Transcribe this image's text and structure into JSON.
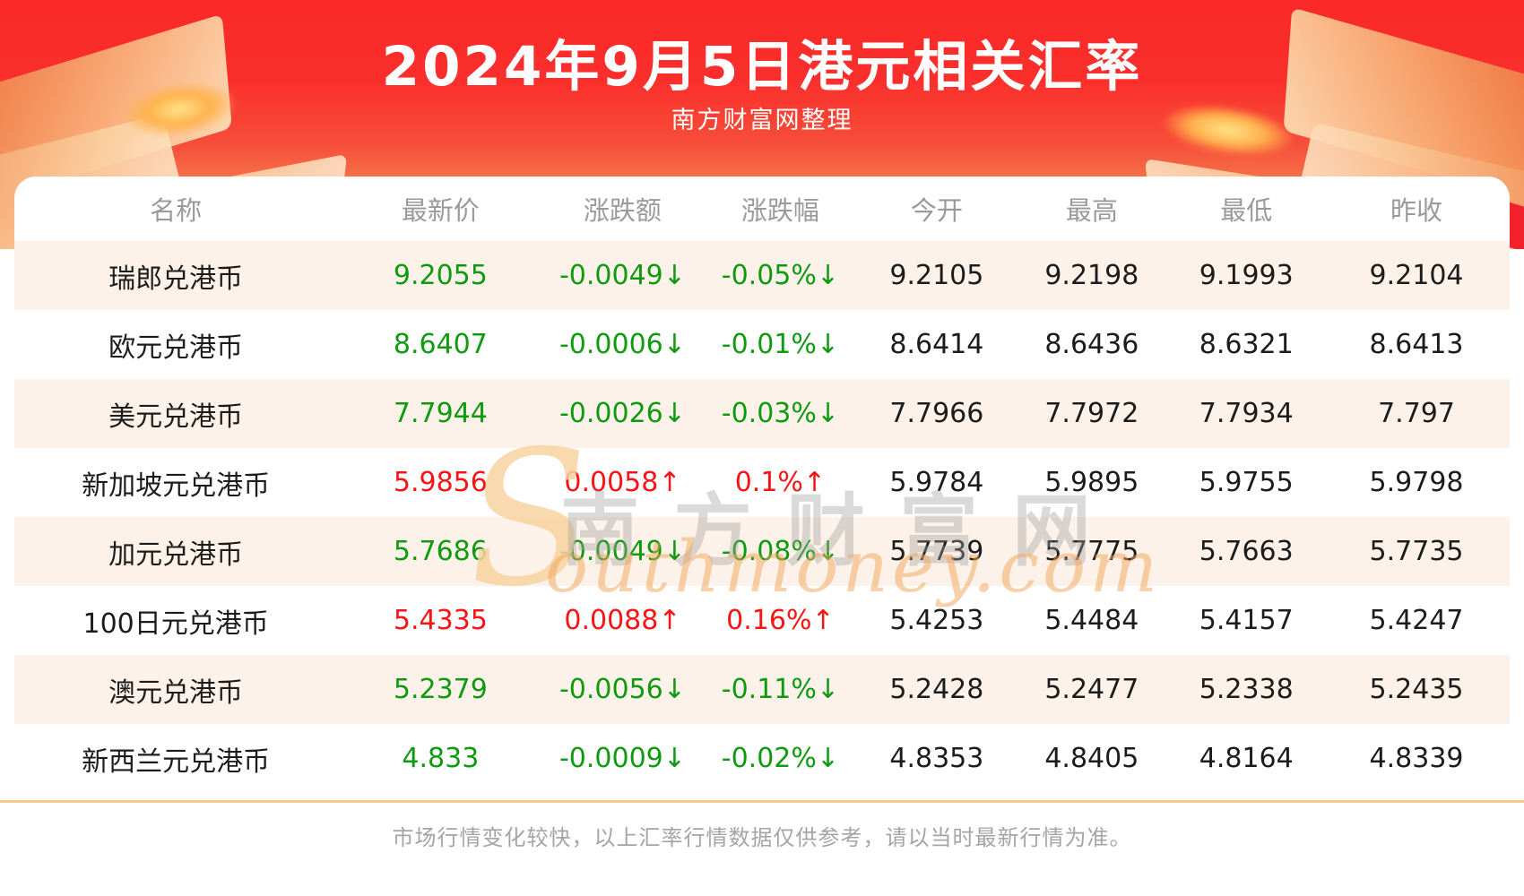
{
  "header": {
    "title": "2024年9月5日港元相关汇率",
    "subtitle": "南方财富网整理"
  },
  "chart_data": {
    "type": "table",
    "title": "2024年9月5日港元相关汇率",
    "subtitle": "南方财富网整理",
    "columns": [
      "名称",
      "最新价",
      "涨跌额",
      "涨跌幅",
      "今开",
      "最高",
      "最低",
      "昨收"
    ],
    "rows": [
      {
        "name": "瑞郎兑港币",
        "latest": "9.2055",
        "change": "-0.0049↓",
        "change_pct": "-0.05%↓",
        "open": "9.2105",
        "high": "9.2198",
        "low": "9.1993",
        "prev_close": "9.2104",
        "direction": "down"
      },
      {
        "name": "欧元兑港币",
        "latest": "8.6407",
        "change": "-0.0006↓",
        "change_pct": "-0.01%↓",
        "open": "8.6414",
        "high": "8.6436",
        "low": "8.6321",
        "prev_close": "8.6413",
        "direction": "down"
      },
      {
        "name": "美元兑港币",
        "latest": "7.7944",
        "change": "-0.0026↓",
        "change_pct": "-0.03%↓",
        "open": "7.7966",
        "high": "7.7972",
        "low": "7.7934",
        "prev_close": "7.797",
        "direction": "down"
      },
      {
        "name": "新加坡元兑港币",
        "latest": "5.9856",
        "change": "0.0058↑",
        "change_pct": "0.1%↑",
        "open": "5.9784",
        "high": "5.9895",
        "low": "5.9755",
        "prev_close": "5.9798",
        "direction": "up"
      },
      {
        "name": "加元兑港币",
        "latest": "5.7686",
        "change": "-0.0049↓",
        "change_pct": "-0.08%↓",
        "open": "5.7739",
        "high": "5.7775",
        "low": "5.7663",
        "prev_close": "5.7735",
        "direction": "down"
      },
      {
        "name": "100日元兑港币",
        "latest": "5.4335",
        "change": "0.0088↑",
        "change_pct": "0.16%↑",
        "open": "5.4253",
        "high": "5.4484",
        "low": "5.4157",
        "prev_close": "5.4247",
        "direction": "up"
      },
      {
        "name": "澳元兑港币",
        "latest": "5.2379",
        "change": "-0.0056↓",
        "change_pct": "-0.11%↓",
        "open": "5.2428",
        "high": "5.2477",
        "low": "5.2338",
        "prev_close": "5.2435",
        "direction": "down"
      },
      {
        "name": "新西兰元兑港币",
        "latest": "4.833",
        "change": "-0.0009↓",
        "change_pct": "-0.02%↓",
        "open": "4.8353",
        "high": "4.8405",
        "low": "4.8164",
        "prev_close": "4.8339",
        "direction": "down"
      }
    ],
    "footnote": "市场行情变化较快，以上汇率行情数据仅供参考，请以当时最新行情为准。"
  },
  "watermark": {
    "s": "S",
    "cn": "南方财富网",
    "en": "outhmoney.com"
  },
  "footer": {
    "disclaimer": "市场行情变化较快，以上汇率行情数据仅供参考，请以当时最新行情为准。"
  },
  "colors": {
    "up": "#f71414",
    "down": "#0f9b10",
    "hero_red_top": "#fb2929",
    "hero_orange_bottom": "#fbd5a4",
    "row_stripe": "#fdf2e9",
    "separator": "#f8c88e",
    "header_text": "#9a9a9a"
  }
}
